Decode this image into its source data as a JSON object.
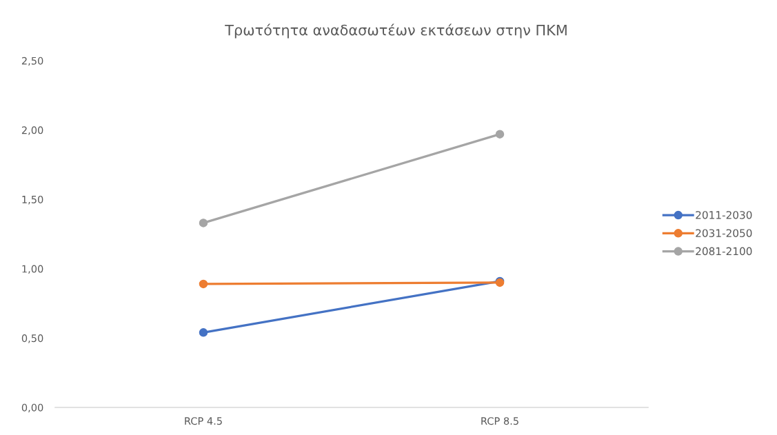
{
  "chart_data": {
    "type": "line",
    "title": "Τρωτότητα αναδασωτέων εκτάσεων στην ΠΚΜ",
    "categories": [
      "RCP 4.5",
      "RCP 8.5"
    ],
    "series": [
      {
        "name": "2011-2030",
        "color": "#4472c4",
        "values": [
          0.54,
          0.91
        ]
      },
      {
        "name": "2031-2050",
        "color": "#ed7d31",
        "values": [
          0.89,
          0.9
        ]
      },
      {
        "name": "2081-2100",
        "color": "#a5a5a5",
        "values": [
          1.33,
          1.97
        ]
      }
    ],
    "ylim": [
      0,
      2.5
    ],
    "yticks": [
      {
        "value": 0,
        "label": "0,00"
      },
      {
        "value": 0.5,
        "label": "0,50"
      },
      {
        "value": 1.0,
        "label": "1,00"
      },
      {
        "value": 1.5,
        "label": "1,50"
      },
      {
        "value": 2.0,
        "label": "2,00"
      },
      {
        "value": 2.5,
        "label": "2,50"
      }
    ],
    "grid": false,
    "legend": "right",
    "marker": "circle",
    "line_style": "solid"
  }
}
